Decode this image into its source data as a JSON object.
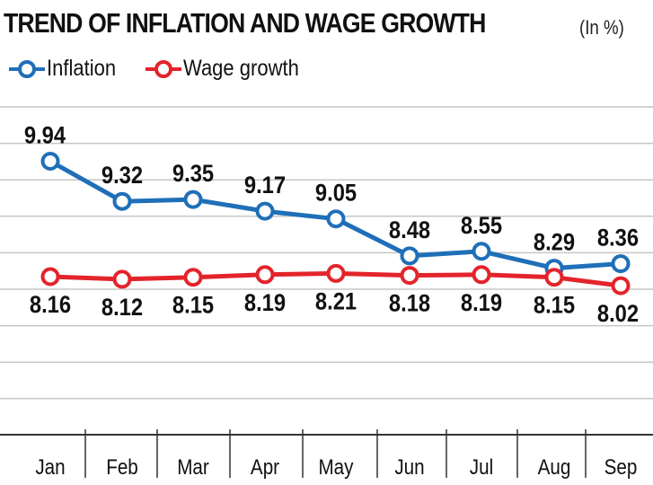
{
  "colors": {
    "inflation": "#1f6fb8",
    "wage": "#e3242b",
    "grid": "#c7c7c7",
    "text": "#111111"
  },
  "chart_data": {
    "type": "line",
    "title": "TREND OF INFLATION AND WAGE GROWTH",
    "unit": "(In %)",
    "categories": [
      "Jan",
      "Feb",
      "Mar",
      "Apr",
      "May",
      "Jun",
      "Jul",
      "Aug",
      "Sep"
    ],
    "series": [
      {
        "name": "Inflation",
        "values": [
          9.94,
          9.32,
          9.35,
          9.17,
          9.05,
          8.48,
          8.55,
          8.29,
          8.36
        ]
      },
      {
        "name": "Wage growth",
        "values": [
          8.16,
          8.12,
          8.15,
          8.19,
          8.21,
          8.18,
          8.19,
          8.15,
          8.02
        ]
      }
    ],
    "ylim": [
      7,
      10.5
    ],
    "grid": true,
    "legend": "top-left",
    "xlabel": "",
    "ylabel": ""
  }
}
